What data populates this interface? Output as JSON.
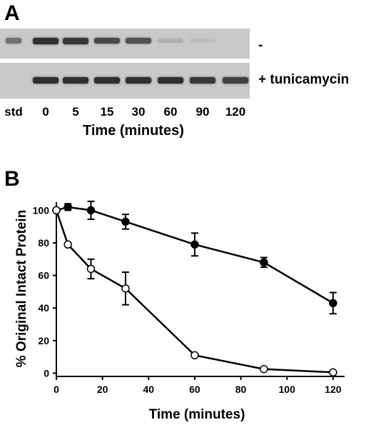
{
  "figure": {
    "panel_a": {
      "letter": "A",
      "rows": [
        {
          "label": "-",
          "band_intensity": [
            0.55,
            0.95,
            0.9,
            0.8,
            0.75,
            0.15,
            0.06,
            0.0
          ]
        },
        {
          "label": "+ tunicamycin",
          "band_intensity": [
            0.0,
            0.95,
            0.95,
            0.95,
            0.95,
            0.95,
            0.9,
            0.85
          ]
        }
      ],
      "lanes": [
        "std",
        "0",
        "5",
        "15",
        "30",
        "60",
        "90",
        "120"
      ],
      "xlabel": "Time (minutes)"
    },
    "panel_b": {
      "letter": "B"
    }
  },
  "chart_data": {
    "type": "line",
    "xlabel": "Time (minutes)",
    "ylabel": "% Original Intact Protein",
    "xlim": [
      0,
      125
    ],
    "ylim": [
      -2,
      105
    ],
    "xticks": [
      0,
      20,
      40,
      60,
      80,
      100,
      120
    ],
    "yticks": [
      0,
      20,
      40,
      60,
      80,
      100
    ],
    "grid": false,
    "series": [
      {
        "marker": "filled-circle",
        "color": "#000000",
        "x": [
          0,
          5,
          15,
          30,
          60,
          90,
          120
        ],
        "y": [
          100,
          102,
          100,
          93,
          79,
          68,
          43
        ],
        "err": [
          0,
          2,
          5.5,
          4.5,
          7,
          3,
          6.5
        ]
      },
      {
        "marker": "open-circle",
        "color": "#000000",
        "x": [
          0,
          5,
          15,
          30,
          60,
          90,
          120
        ],
        "y": [
          100,
          79,
          64,
          52,
          11,
          2.5,
          0.5
        ],
        "err": [
          0,
          1,
          6,
          10,
          0,
          0.5,
          0
        ]
      }
    ]
  }
}
